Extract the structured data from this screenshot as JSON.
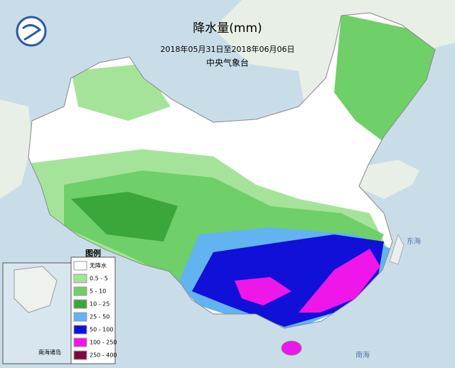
{
  "header": {
    "title": "降水量(mm)",
    "subtitle": "2018年05月31日至2018年06月06日",
    "source": "中央气象台"
  },
  "legend": {
    "title": "图例",
    "items": [
      {
        "label": "无降水",
        "color": "#ffffff"
      },
      {
        "label": "0.5 - 5",
        "color": "#a6e39a"
      },
      {
        "label": "5 - 10",
        "color": "#6fcf68"
      },
      {
        "label": "10 - 25",
        "color": "#3ba73a"
      },
      {
        "label": "25 - 50",
        "color": "#62b3f0"
      },
      {
        "label": "50 - 100",
        "color": "#1010d8"
      },
      {
        "label": "100 - 250",
        "color": "#ee16e8"
      },
      {
        "label": "250 - 400",
        "color": "#7a0a40"
      }
    ]
  },
  "inset": {
    "label": "南海诸岛"
  },
  "sea_labels": [
    "东海",
    "南海"
  ]
}
